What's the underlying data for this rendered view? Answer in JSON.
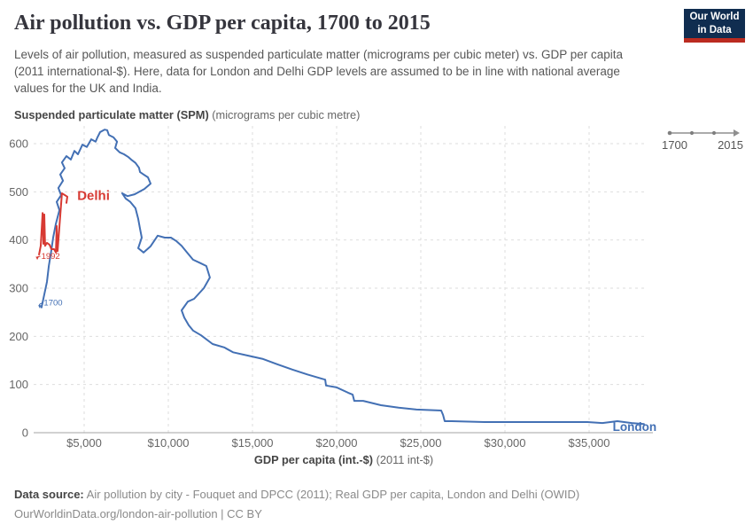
{
  "header": {
    "title": "Air pollution vs. GDP per capita, 1700 to 2015",
    "subtitle": "Levels of air pollution, measured as suspended particulate matter (micrograms per cubic meter) vs. GDP per capita (2011 international-$). Here, data for London and Delhi GDP levels are assumed to be in line with national average values for the UK and India.",
    "logo": {
      "line1": "Our World",
      "line2": "in Data"
    }
  },
  "axis_titles": {
    "y_bold": "Suspended particulate matter (SPM)",
    "y_normal": " (micrograms per cubic metre)",
    "x_bold": "GDP per capita (int.-$)",
    "x_normal": " (2011 int-$)"
  },
  "timeline": {
    "start": "1700",
    "end": "2015"
  },
  "footer": {
    "source_label": "Data source:",
    "source_text": " Air pollution by city - Fouquet and DPCC (2011); Real GDP per capita, London and Delhi (OWID)",
    "link_line": "OurWorldinData.org/london-air-pollution | CC BY"
  },
  "colors": {
    "london": "#4370b4",
    "delhi": "#d73a33",
    "grid": "#dedede",
    "axis": "#a3a3a3",
    "tick_text": "#666666",
    "logo_navy": "#102d50",
    "logo_red": "#bb2b20"
  },
  "chart_data": {
    "type": "line",
    "title": "Air pollution vs. GDP per capita, 1700 to 2015",
    "xlabel": "GDP per capita (int.-$) (2011 int-$)",
    "ylabel": "Suspended particulate matter (SPM) (micrograms per cubic metre)",
    "x_range": [
      2000,
      38800
    ],
    "y_range": [
      0,
      635
    ],
    "x_ticks": [
      5000,
      10000,
      15000,
      20000,
      25000,
      30000,
      35000
    ],
    "y_ticks": [
      0,
      100,
      200,
      300,
      400,
      500,
      600
    ],
    "grid": true,
    "legend_position": "end-of-line-labels",
    "series": [
      {
        "name": "London",
        "end_label": {
          "text": "London",
          "gdp": 36400,
          "spm": 13,
          "size": 13.5
        },
        "start_label": {
          "text": "1700",
          "dy": -2
        },
        "points": [
          [
            2470,
            260
          ],
          [
            2630,
            287
          ],
          [
            2790,
            313
          ],
          [
            2900,
            346
          ],
          [
            3050,
            379
          ],
          [
            3160,
            405
          ],
          [
            3320,
            434
          ],
          [
            3530,
            462
          ],
          [
            3370,
            479
          ],
          [
            3630,
            493
          ],
          [
            3470,
            508
          ],
          [
            3740,
            523
          ],
          [
            3580,
            536
          ],
          [
            3840,
            549
          ],
          [
            3680,
            561
          ],
          [
            3950,
            574
          ],
          [
            4210,
            567
          ],
          [
            4420,
            585
          ],
          [
            4630,
            578
          ],
          [
            4900,
            598
          ],
          [
            5160,
            593
          ],
          [
            5420,
            609
          ],
          [
            5680,
            604
          ],
          [
            5790,
            613
          ],
          [
            5950,
            624
          ],
          [
            6210,
            629
          ],
          [
            6370,
            628
          ],
          [
            6470,
            618
          ],
          [
            6740,
            613
          ],
          [
            6950,
            604
          ],
          [
            6840,
            591
          ],
          [
            7110,
            582
          ],
          [
            7370,
            578
          ],
          [
            7630,
            572
          ],
          [
            7790,
            567
          ],
          [
            8050,
            560
          ],
          [
            8260,
            550
          ],
          [
            8320,
            541
          ],
          [
            8530,
            536
          ],
          [
            8790,
            530
          ],
          [
            8950,
            517
          ],
          [
            8580,
            506
          ],
          [
            8000,
            495
          ],
          [
            7580,
            491
          ],
          [
            7260,
            497
          ],
          [
            7470,
            486
          ],
          [
            7740,
            479
          ],
          [
            8050,
            466
          ],
          [
            8210,
            444
          ],
          [
            8320,
            423
          ],
          [
            8420,
            405
          ],
          [
            8210,
            383
          ],
          [
            8530,
            374
          ],
          [
            8950,
            387
          ],
          [
            9370,
            409
          ],
          [
            9790,
            405
          ],
          [
            10160,
            405
          ],
          [
            10470,
            398
          ],
          [
            10790,
            388
          ],
          [
            11050,
            377
          ],
          [
            11470,
            359
          ],
          [
            11900,
            352
          ],
          [
            12260,
            346
          ],
          [
            12470,
            322
          ],
          [
            12110,
            300
          ],
          [
            11530,
            278
          ],
          [
            11160,
            272
          ],
          [
            10790,
            254
          ],
          [
            10950,
            239
          ],
          [
            11210,
            223
          ],
          [
            11470,
            212
          ],
          [
            11950,
            202
          ],
          [
            12630,
            184
          ],
          [
            13320,
            177
          ],
          [
            13840,
            167
          ],
          [
            14740,
            160
          ],
          [
            15630,
            153
          ],
          [
            16470,
            142
          ],
          [
            17370,
            131
          ],
          [
            18260,
            121
          ],
          [
            19110,
            112
          ],
          [
            19320,
            110
          ],
          [
            19370,
            98
          ],
          [
            20000,
            94
          ],
          [
            20680,
            83
          ],
          [
            20950,
            79
          ],
          [
            21050,
            66
          ],
          [
            21580,
            66
          ],
          [
            22630,
            57
          ],
          [
            23680,
            52
          ],
          [
            24740,
            48
          ],
          [
            26210,
            46
          ],
          [
            26320,
            37
          ],
          [
            26420,
            24
          ],
          [
            26840,
            24
          ],
          [
            28790,
            22
          ],
          [
            32260,
            22
          ],
          [
            34900,
            22
          ],
          [
            35790,
            20
          ],
          [
            36680,
            24
          ],
          [
            37530,
            20
          ],
          [
            38260,
            18
          ]
        ]
      },
      {
        "name": "Delhi",
        "end_label": {
          "text": "Delhi",
          "gdp": 4590,
          "spm": 492,
          "size": 15
        },
        "start_label": {
          "text": "1992",
          "dy": 5
        },
        "points": [
          [
            2320,
            370
          ],
          [
            2420,
            388
          ],
          [
            2530,
            456
          ],
          [
            2580,
            392
          ],
          [
            2630,
            453
          ],
          [
            2680,
            388
          ],
          [
            2790,
            394
          ],
          [
            2950,
            390
          ],
          [
            3050,
            381
          ],
          [
            3210,
            381
          ],
          [
            3320,
            374
          ],
          [
            3370,
            429
          ],
          [
            3420,
            377
          ],
          [
            3680,
            497
          ],
          [
            4000,
            490
          ],
          [
            3950,
            477
          ]
        ]
      }
    ]
  }
}
